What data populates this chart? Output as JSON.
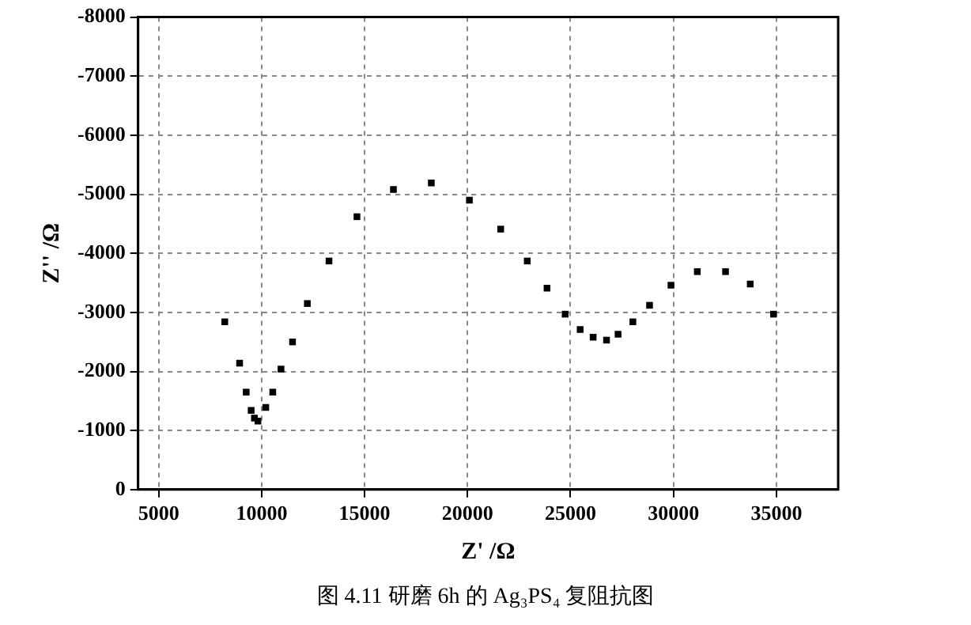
{
  "chart_data": {
    "type": "scatter",
    "xlabel": "Z' /Ω",
    "ylabel": "Z'' /Ω",
    "annotations": [
      "图 4.11 研磨 6h 的 Ag₃PS₄ 复阻抗图"
    ],
    "x": [
      8210,
      8930,
      9250,
      9490,
      9650,
      9820,
      10200,
      10540,
      10940,
      11500,
      12220,
      13270,
      14630,
      16400,
      18240,
      20090,
      21610,
      22900,
      23860,
      24740,
      25470,
      26100,
      26750,
      27310,
      28030,
      28840,
      29880,
      31160,
      32530,
      33730,
      34860
    ],
    "series": [
      {
        "color": "#000000",
        "values": [
          -2840,
          -2140,
          -1650,
          -1340,
          -1210,
          -1160,
          -1390,
          -1650,
          -2040,
          -2500,
          -3150,
          -3870,
          -4620,
          -5080,
          -5190,
          -4900,
          -4410,
          -3870,
          -3410,
          -2970,
          -2710,
          -2580,
          -2530,
          -2630,
          -2840,
          -3120,
          -3460,
          -3690,
          -3690,
          -3480,
          -2970
        ]
      }
    ],
    "xlim": [
      4000,
      38000
    ],
    "xticks": [
      5000,
      10000,
      15000,
      20000,
      25000,
      30000,
      35000
    ],
    "ylim": [
      0,
      -8000
    ],
    "yticks": [
      0,
      -1000,
      -2000,
      -3000,
      -4000,
      -5000,
      -6000,
      -7000,
      -8000
    ],
    "grid": true,
    "legend": false,
    "marker": "square"
  }
}
